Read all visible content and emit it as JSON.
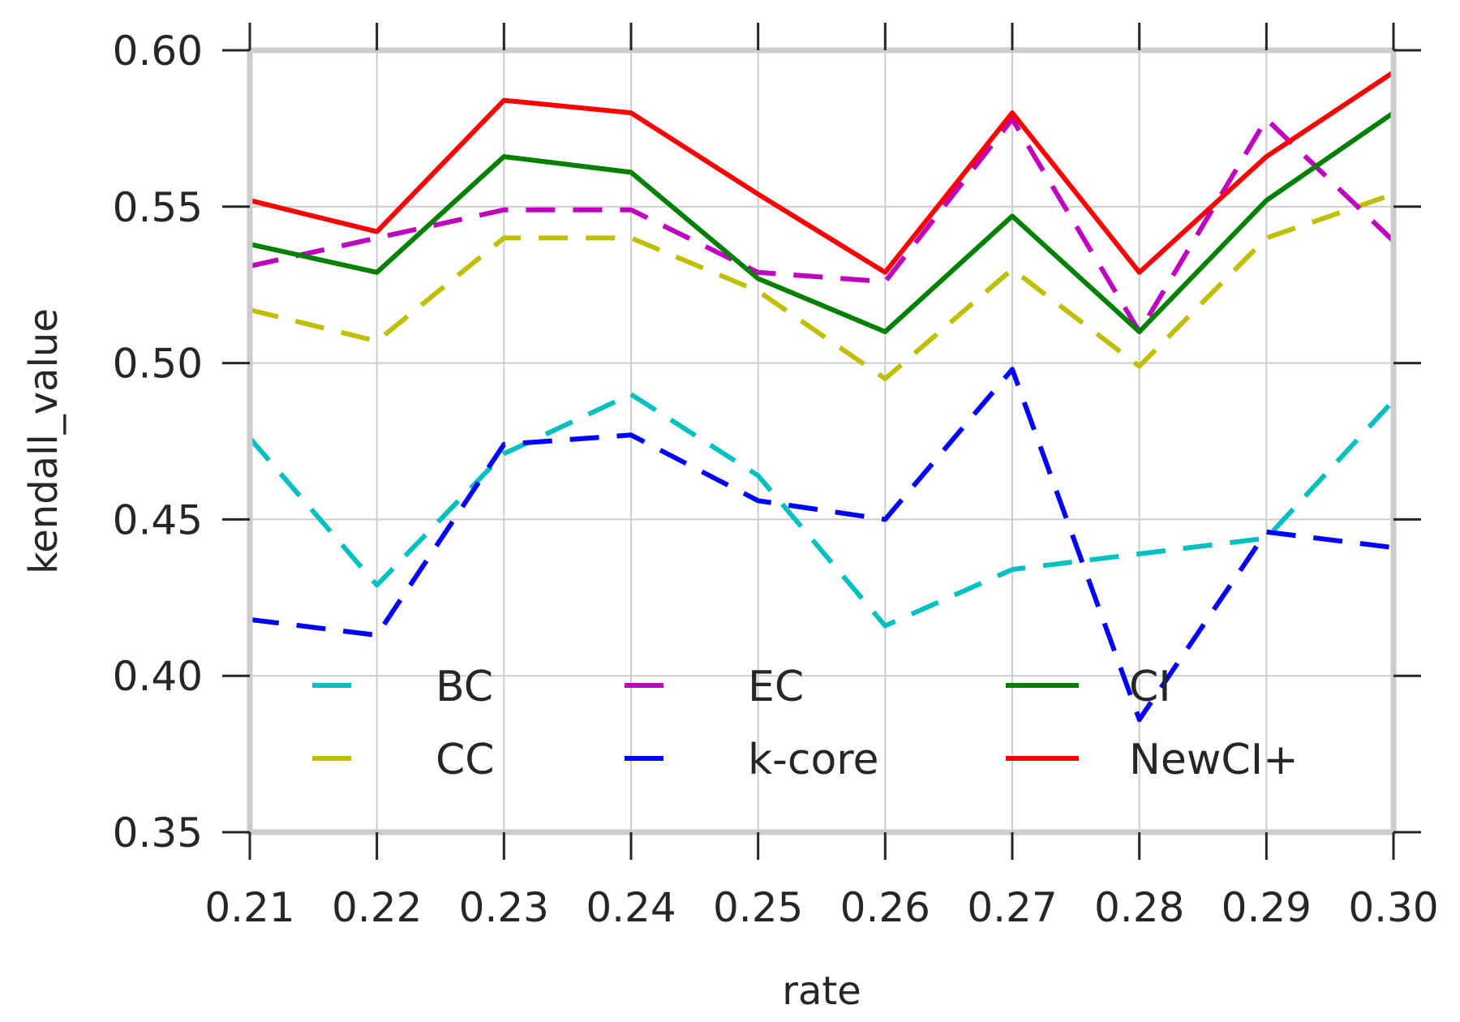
{
  "chart_data": {
    "type": "line",
    "xlabel": "rate",
    "ylabel": "kendall_value",
    "xlim": [
      0.21,
      0.3
    ],
    "ylim": [
      0.35,
      0.6
    ],
    "grid": true,
    "legend_placement": "lower-center",
    "x": [
      0.21,
      0.22,
      0.23,
      0.24,
      0.25,
      0.26,
      0.27,
      0.28,
      0.29,
      0.3
    ],
    "x_tick_labels": [
      "0.21",
      "0.22",
      "0.23",
      "0.24",
      "0.25",
      "0.26",
      "0.27",
      "0.28",
      "0.29",
      "0.30"
    ],
    "y_ticks": [
      0.35,
      0.4,
      0.45,
      0.5,
      0.55,
      0.6
    ],
    "y_tick_labels": [
      "0.35",
      "0.40",
      "0.45",
      "0.50",
      "0.55",
      "0.60"
    ],
    "series": [
      {
        "name": "BC",
        "color": "#00bfbf",
        "style": "dashed",
        "values": [
          0.476,
          0.429,
          0.471,
          0.49,
          0.464,
          0.416,
          0.434,
          0.439,
          0.444,
          0.488
        ]
      },
      {
        "name": "CC",
        "color": "#bfbf00",
        "style": "dashed",
        "values": [
          0.517,
          0.507,
          0.54,
          0.54,
          0.523,
          0.495,
          0.53,
          0.499,
          0.54,
          0.554
        ]
      },
      {
        "name": "EC",
        "color": "#bf00bf",
        "style": "dashed",
        "values": [
          0.531,
          0.54,
          0.549,
          0.549,
          0.529,
          0.526,
          0.578,
          0.51,
          0.578,
          0.539
        ]
      },
      {
        "name": "k-core",
        "color": "#0000ff",
        "style": "dashed",
        "values": [
          0.418,
          0.413,
          0.474,
          0.477,
          0.456,
          0.45,
          0.498,
          0.386,
          0.446,
          0.441
        ]
      },
      {
        "name": "CI",
        "color": "#008000",
        "style": "solid",
        "values": [
          0.538,
          0.529,
          0.566,
          0.561,
          0.527,
          0.51,
          0.547,
          0.51,
          0.552,
          0.58
        ]
      },
      {
        "name": "NewCI+",
        "color": "#ff0000",
        "style": "solid",
        "values": [
          0.552,
          0.542,
          0.584,
          0.58,
          0.554,
          0.529,
          0.58,
          0.529,
          0.566,
          0.593
        ]
      }
    ],
    "legend_order": [
      "BC",
      "CC",
      "EC",
      "k-core",
      "CI",
      "NewCI+"
    ]
  }
}
